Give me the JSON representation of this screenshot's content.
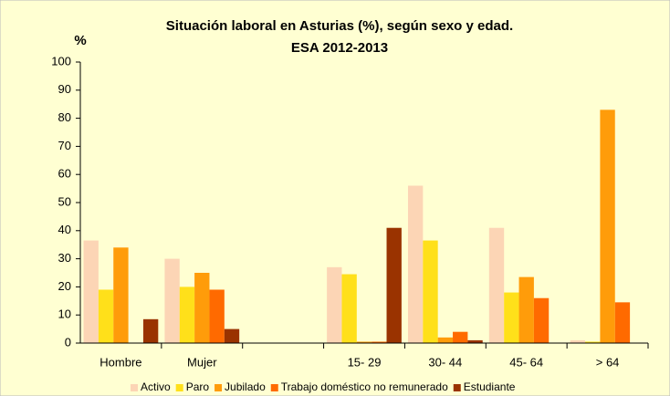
{
  "chart_data": {
    "type": "bar",
    "title": [
      "Situación laboral en Asturias (%), según sexo y edad.",
      "ESA 2012-2013"
    ],
    "y_label": "%",
    "categories": [
      "Hombre",
      "Mujer",
      null,
      "15- 29",
      "30- 44",
      "45- 64",
      "> 64"
    ],
    "series": [
      {
        "name": "Activo",
        "color": "#fcd5b5",
        "values": [
          36.5,
          30,
          null,
          27,
          56,
          41,
          1
        ]
      },
      {
        "name": "Paro",
        "color": "#ffe01a",
        "values": [
          19,
          20,
          null,
          24.5,
          36.5,
          18,
          0.5
        ]
      },
      {
        "name": "Jubilado",
        "color": "#ff9c0a",
        "values": [
          34,
          25,
          null,
          0.5,
          2,
          23.5,
          83
        ]
      },
      {
        "name": "Trabajo doméstico no remunerado",
        "color": "#ff6a00",
        "values": [
          0,
          19,
          null,
          0.5,
          4,
          16,
          14.5
        ]
      },
      {
        "name": "Estudiante",
        "color": "#9a3300",
        "values": [
          8.5,
          5,
          null,
          41,
          1,
          0,
          0
        ]
      }
    ],
    "ylim": [
      0,
      100
    ],
    "yticks": [
      0,
      10,
      20,
      30,
      40,
      50,
      60,
      70,
      80,
      90,
      100
    ],
    "grid": false,
    "legend": "bottom"
  }
}
